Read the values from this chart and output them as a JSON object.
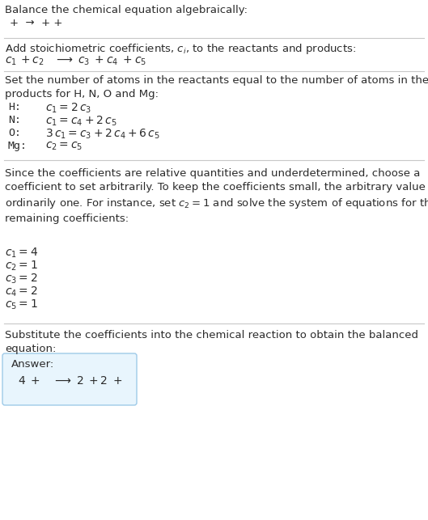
{
  "title": "Balance the chemical equation algebraically:",
  "line1": "+  →  + +",
  "section2_title": "Add stoichiometric coefficients, $c_i$, to the reactants and products:",
  "line2_parts": [
    "$c_1$",
    "+",
    "$c_2$",
    "→",
    "$c_3$",
    "+",
    "$c_4$",
    "+",
    "$c_5$"
  ],
  "section3_title": "Set the number of atoms in the reactants equal to the number of atoms in the\nproducts for H, N, O and Mg:",
  "eq_labels": [
    "H:",
    "N:",
    "O:",
    "Mg:"
  ],
  "eq_exprs": [
    "$c_1 = 2\\,c_3$",
    "$c_1 = c_4 + 2\\,c_5$",
    "$3\\,c_1 = c_3 + 2\\,c_4 + 6\\,c_5$",
    "$c_2 = c_5$"
  ],
  "section4_text": "Since the coefficients are relative quantities and underdetermined, choose a\ncoefficient to set arbitrarily. To keep the coefficients small, the arbitrary value is\nordinarily one. For instance, set $c_2 = 1$ and solve the system of equations for the\nremaining coefficients:",
  "coeff_exprs": [
    "$c_1 = 4$",
    "$c_2 = 1$",
    "$c_3 = 2$",
    "$c_4 = 2$",
    "$c_5 = 1$"
  ],
  "section5_title": "Substitute the coefficients into the chemical reaction to obtain the balanced\nequation:",
  "answer_label": "Answer:",
  "answer_line": "4 +   →  2  + 2  +",
  "bg_color": "#ffffff",
  "text_color": "#2b2b2b",
  "answer_box_facecolor": "#e8f5fd",
  "answer_box_edgecolor": "#9ecae8",
  "sep_color": "#c8c8c8",
  "fs": 9.5,
  "fs_math": 10.0
}
